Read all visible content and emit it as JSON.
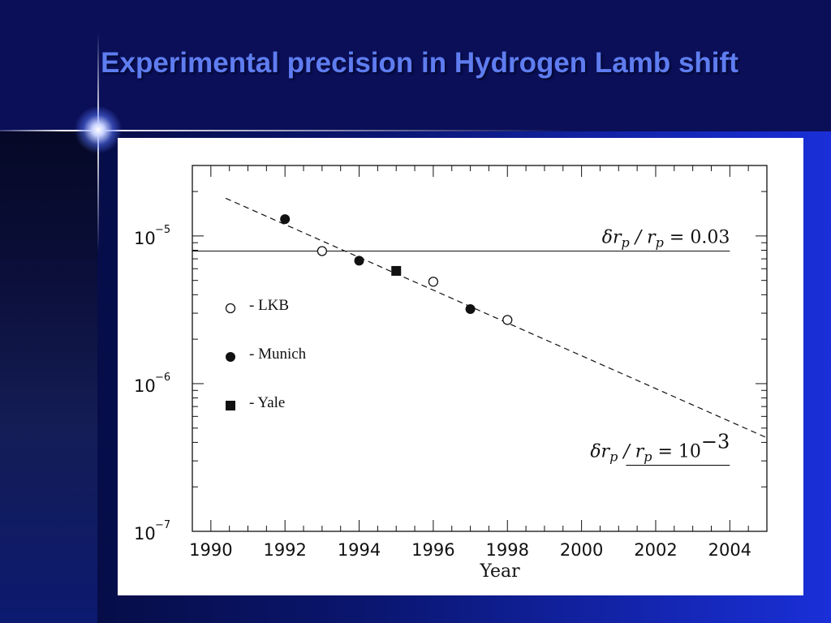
{
  "slide": {
    "title": "Experimental precision in Hydrogen Lamb shift"
  },
  "chart_data": {
    "type": "scatter",
    "title": "",
    "xlabel": "Year",
    "ylabel": "",
    "xlim": [
      1989.5,
      2005
    ],
    "ylim": [
      1e-07,
      3e-05
    ],
    "yscale": "log",
    "grid": false,
    "legend_placement": "left",
    "x_ticks": [
      {
        "v": 1990,
        "label": "1990"
      },
      {
        "v": 1992,
        "label": "1992"
      },
      {
        "v": 1994,
        "label": "1994"
      },
      {
        "v": 1996,
        "label": "1996"
      },
      {
        "v": 1998,
        "label": "1998"
      },
      {
        "v": 2000,
        "label": "2000"
      },
      {
        "v": 2002,
        "label": "2002"
      },
      {
        "v": 2004,
        "label": "2004"
      }
    ],
    "y_ticks": [
      {
        "v": 1e-05,
        "base": "10",
        "exp": "−5"
      },
      {
        "v": 1e-06,
        "base": "10",
        "exp": "−6"
      },
      {
        "v": 1e-07,
        "base": "10",
        "exp": "−7"
      }
    ],
    "series": [
      {
        "name": "- LKB",
        "marker": "open-circle",
        "points": [
          [
            1993,
            7.9e-06
          ],
          [
            1996,
            4.9e-06
          ],
          [
            1998,
            2.7e-06
          ]
        ]
      },
      {
        "name": "- Munich",
        "marker": "filled-circle",
        "points": [
          [
            1992,
            1.3e-05
          ],
          [
            1994,
            6.8e-06
          ],
          [
            1997,
            3.2e-06
          ]
        ]
      },
      {
        "name": "- Yale",
        "marker": "filled-square",
        "points": [
          [
            1995,
            5.8e-06
          ]
        ]
      }
    ],
    "trend_line": {
      "style": "dashed",
      "from": [
        1990.4,
        1.8e-05
      ],
      "to": [
        2005,
        4.3e-07
      ]
    },
    "reference_lines": [
      {
        "y": 7.9e-06,
        "x_from": 1989.5,
        "x_to": 2004,
        "label_main": "δr",
        "label_sub": "p",
        "label_mid": " / r",
        "label_sub2": "p",
        "label_eq": " = 0.03",
        "label_sup": ""
      },
      {
        "y": 2.8e-07,
        "x_from": 2001.2,
        "x_to": 2004,
        "label_main": "δr",
        "label_sub": "p",
        "label_mid": " / r",
        "label_sub2": "p",
        "label_eq": " = 10",
        "label_sup": "−3"
      }
    ]
  }
}
